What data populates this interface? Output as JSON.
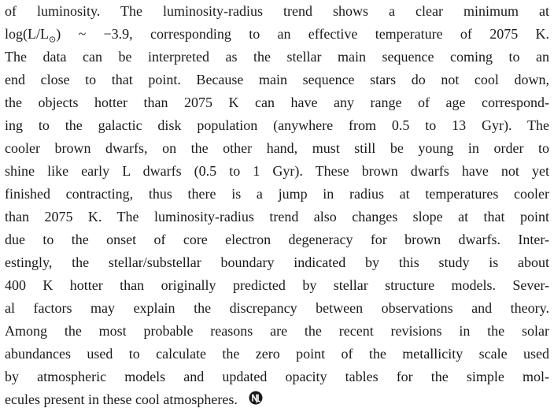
{
  "paragraph": {
    "lines": [
      "of luminosity. The luminosity-radius trend shows a clear minimum at",
      {
        "before": "log(L/L",
        "sub": "⊙",
        "after": ") ~ −3.9, corresponding to an effective temperature of 2075 K."
      },
      "The data can be interpreted as the stellar main sequence coming to an",
      "end close to that point. Because main sequence stars do not cool down,",
      "the objects hotter than 2075 K can have any range of age correspond-",
      "ing to the galactic disk population (anywhere from 0.5 to 13 Gyr). The",
      "cooler brown dwarfs, on the other hand, must still be young in order to",
      "shine like early L dwarfs (0.5 to 1 Gyr). These brown dwarfs have not yet",
      "finished contracting, thus there is a jump in radius at temperatures cooler",
      "than 2075 K. The luminosity-radius trend also changes slope at that point",
      "due to the onset of core electron degeneracy for brown dwarfs. Inter-",
      "estingly, the stellar/substellar boundary indicated by this study is about",
      "400 K hotter than originally predicted by stellar structure models. Sever-",
      "al factors may explain the discrepancy between observations and theory.",
      "Among the most probable reasons are the recent revisions in the solar",
      "abundances used to calculate the zero point of the metallicity scale used",
      "by atmospheric models and updated opacity tables for the simple mol-",
      "ecules present in these cool atmospheres."
    ]
  }
}
